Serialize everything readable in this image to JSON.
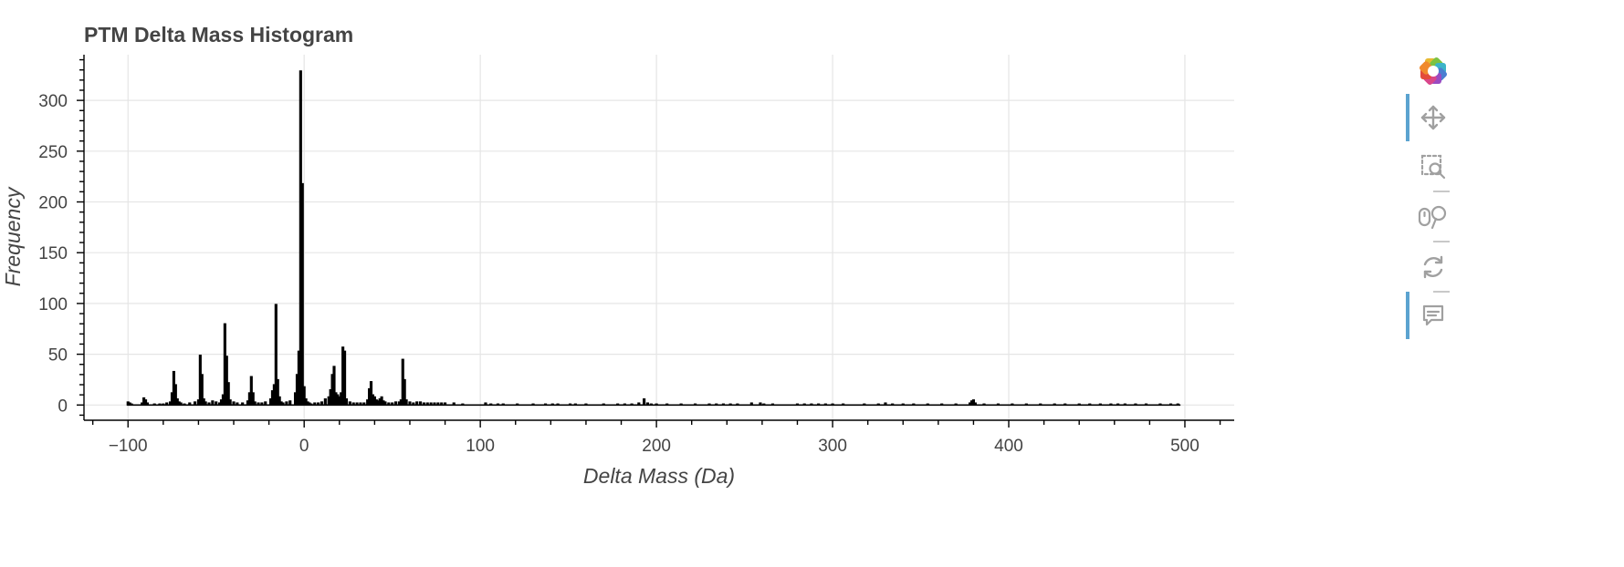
{
  "chart_data": {
    "type": "bar",
    "title": "PTM Delta Mass Histogram",
    "xlabel": "Delta Mass (Da)",
    "ylabel": "Frequency",
    "xlim": [
      -125,
      528
    ],
    "ylim": [
      -15,
      345
    ],
    "x_ticks": [
      -100,
      0,
      100,
      200,
      300,
      400,
      500
    ],
    "x_tick_labels": [
      "−100",
      "0",
      "100",
      "200",
      "300",
      "400",
      "500"
    ],
    "y_ticks": [
      0,
      50,
      100,
      150,
      200,
      250,
      300
    ],
    "y_tick_labels": [
      "0",
      "50",
      "100",
      "150",
      "200",
      "250",
      "300"
    ],
    "grid": true,
    "bin_width": 1,
    "series": [
      {
        "x": [
          -100,
          -99,
          -98,
          -92,
          -91,
          -90,
          -89,
          -85,
          -82,
          -80,
          -78,
          -76,
          -75,
          -74,
          -73,
          -72,
          -71,
          -70,
          -68,
          -65,
          -62,
          -60,
          -59,
          -58,
          -57,
          -56,
          -54,
          -52,
          -50,
          -48,
          -47,
          -46,
          -45,
          -44,
          -43,
          -42,
          -40,
          -38,
          -35,
          -32,
          -31,
          -30,
          -29,
          -28,
          -26,
          -24,
          -22,
          -19,
          -18,
          -17,
          -16,
          -15,
          -14,
          -13,
          -12,
          -10,
          -8,
          -5,
          -4,
          -3,
          -2,
          -1,
          0,
          1,
          2,
          3,
          4,
          6,
          8,
          10,
          12,
          14,
          15,
          16,
          17,
          18,
          19,
          20,
          21,
          22,
          23,
          24,
          26,
          28,
          30,
          32,
          34,
          36,
          37,
          38,
          39,
          40,
          41,
          42,
          43,
          44,
          45,
          46,
          48,
          50,
          52,
          54,
          55,
          56,
          57,
          58,
          60,
          62,
          64,
          66,
          68,
          70,
          72,
          74,
          76,
          78,
          80,
          85,
          90,
          103,
          106,
          110,
          113,
          121,
          130,
          137,
          141,
          144,
          151,
          154,
          160,
          170,
          178,
          182,
          186,
          190,
          193,
          195,
          197,
          200,
          206,
          214,
          222,
          230,
          234,
          238,
          242,
          246,
          254,
          259,
          261,
          266,
          280,
          284,
          288,
          292,
          296,
          300,
          306,
          318,
          326,
          330,
          334,
          340,
          346,
          354,
          362,
          370,
          378,
          379,
          380,
          381,
          386,
          394,
          402,
          410,
          418,
          426,
          432,
          440,
          446,
          452,
          458,
          462,
          466,
          472,
          478,
          486,
          492,
          496
        ],
        "values": [
          3,
          2,
          1,
          2,
          7,
          5,
          2,
          1,
          1,
          1,
          2,
          3,
          12,
          33,
          20,
          6,
          3,
          2,
          1,
          2,
          3,
          5,
          49,
          30,
          6,
          3,
          2,
          4,
          3,
          2,
          5,
          10,
          80,
          48,
          22,
          5,
          3,
          2,
          2,
          4,
          12,
          28,
          12,
          3,
          2,
          2,
          3,
          6,
          14,
          20,
          99,
          25,
          8,
          3,
          2,
          3,
          4,
          12,
          30,
          53,
          329,
          218,
          18,
          6,
          3,
          2,
          1,
          2,
          2,
          3,
          6,
          8,
          15,
          30,
          38,
          12,
          10,
          8,
          12,
          57,
          53,
          6,
          3,
          2,
          2,
          2,
          2,
          5,
          16,
          23,
          10,
          8,
          5,
          4,
          6,
          8,
          4,
          3,
          2,
          2,
          3,
          3,
          5,
          45,
          25,
          5,
          3,
          2,
          3,
          3,
          2,
          2,
          2,
          2,
          2,
          2,
          2,
          2,
          1,
          2,
          1,
          1,
          1,
          1,
          1,
          1,
          1,
          1,
          1,
          1,
          1,
          1,
          1,
          1,
          1,
          2,
          6,
          2,
          1,
          1,
          1,
          1,
          1,
          1,
          1,
          1,
          1,
          1,
          2,
          2,
          1,
          1,
          1,
          1,
          1,
          1,
          1,
          1,
          1,
          1,
          1,
          2,
          1,
          1,
          1,
          1,
          1,
          1,
          2,
          4,
          5,
          2,
          1,
          1,
          1,
          1,
          1,
          1,
          1,
          1,
          1,
          1,
          1,
          1,
          1,
          1,
          1,
          1,
          1,
          1
        ]
      }
    ]
  },
  "toolbar": {
    "tools": [
      {
        "name": "pan",
        "icon": "move-arrows-icon",
        "active": true
      },
      {
        "name": "box-zoom",
        "icon": "box-zoom-icon",
        "active": false
      },
      {
        "name": "wheel-zoom",
        "icon": "wheel-zoom-icon",
        "active": false
      },
      {
        "name": "reset",
        "icon": "reset-icon",
        "active": false
      },
      {
        "name": "hover",
        "icon": "hover-tooltip-icon",
        "active": true
      }
    ],
    "logo_icon": "bokeh-logo-icon"
  },
  "colors": {
    "bar": "#000000",
    "grid": "#e5e5e5",
    "text": "#444444",
    "active_tool": "#5ba3d0",
    "icon": "#a0a0a0"
  }
}
